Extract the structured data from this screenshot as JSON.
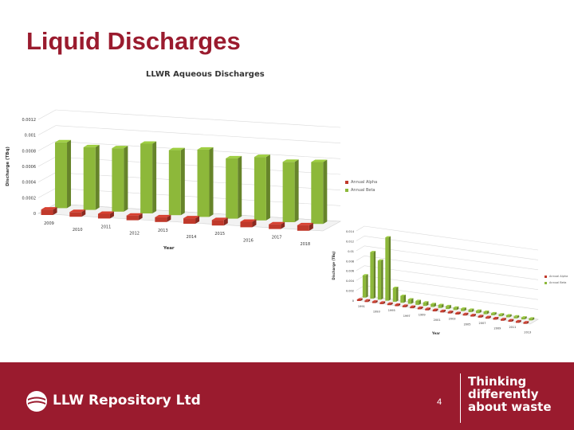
{
  "slide": {
    "title": "Liquid Discharges",
    "page_number": "4"
  },
  "footer": {
    "logo_text": "LLW Repository Ltd",
    "tagline": [
      "Thinking",
      "differently",
      "about waste"
    ],
    "background_color": "#9a1b2e"
  },
  "chart_data": [
    {
      "type": "bar",
      "title": "LLWR Aqueous Discharges",
      "xlabel": "Year",
      "ylabel": "Discharge (TBq)",
      "ylim": [
        0,
        0.0012
      ],
      "y_ticks": [
        "0",
        "0.0002",
        "0.0004",
        "0.0006",
        "0.0008",
        "0.001",
        "0.0012"
      ],
      "categories": [
        "2009",
        "2010",
        "2011",
        "2012",
        "2013",
        "2014",
        "2015",
        "2016",
        "2017",
        "2018"
      ],
      "legend_position": "right",
      "series": [
        {
          "name": "Annual Alpha",
          "color": "#c0392b",
          "values": [
            7e-05,
            6e-05,
            6e-05,
            6e-05,
            6e-05,
            7e-05,
            7e-05,
            7e-05,
            6e-05,
            7e-05
          ]
        },
        {
          "name": "Annual Beta",
          "color": "#8db83a",
          "values": [
            0.00084,
            0.0008,
            0.00081,
            0.00089,
            0.00083,
            0.00086,
            0.00077,
            0.00081,
            0.00077,
            0.00079
          ]
        }
      ]
    },
    {
      "type": "bar",
      "title": "",
      "xlabel": "Year",
      "ylabel": "Discharge (TBq)",
      "ylim": [
        0,
        0.014
      ],
      "y_ticks": [
        "0",
        "0.002",
        "0.004",
        "0.006",
        "0.008",
        "0.01",
        "0.012",
        "0.014"
      ],
      "categories": [
        "1991",
        "1992",
        "1993",
        "1994",
        "1995",
        "1996",
        "1997",
        "1998",
        "1999",
        "2000",
        "2001",
        "2002",
        "2003",
        "2004",
        "2005",
        "2006",
        "2007",
        "2008",
        "2009",
        "2010",
        "2011",
        "2012",
        "2013"
      ],
      "tick_labels": [
        "1991",
        "1993",
        "1995",
        "1997",
        "1999",
        "2001",
        "2003",
        "2005",
        "2007",
        "2009",
        "2011",
        "2013"
      ],
      "legend_position": "right",
      "series": [
        {
          "name": "Annual Alpha",
          "color": "#c0392b",
          "values": [
            0.0002,
            0.0002,
            0.0002,
            0.0002,
            0.0002,
            0.0002,
            0.0001,
            0.0001,
            0.0001,
            0.0001,
            0.0001,
            0.0001,
            0.0001,
            0.0001,
            0.0001,
            0.0001,
            0.0001,
            0.0001,
            0.0001,
            0.0001,
            0.0001,
            0.0001,
            0.0001
          ]
        },
        {
          "name": "Annual Beta",
          "color": "#8db83a",
          "values": [
            0.0045,
            0.0094,
            0.0079,
            0.0128,
            0.0028,
            0.0014,
            0.0009,
            0.0008,
            0.0007,
            0.0006,
            0.0006,
            0.0006,
            0.0005,
            0.0005,
            0.0005,
            0.0005,
            0.0005,
            0.0004,
            0.0004,
            0.0004,
            0.0004,
            0.0004,
            0.0004
          ]
        }
      ]
    }
  ]
}
